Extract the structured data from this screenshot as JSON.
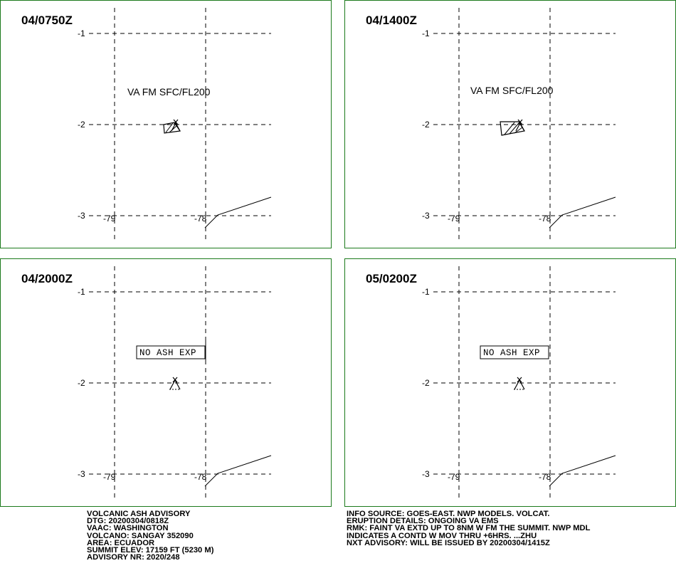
{
  "panels": [
    {
      "time": "04/0750Z",
      "type": "ash",
      "label": "VA FM SFC/FL200",
      "lat_labels": [
        "-1",
        "-2",
        "-3"
      ],
      "lon_labels": [
        "-79",
        "-78"
      ]
    },
    {
      "time": "04/1400Z",
      "type": "ash",
      "label": "VA FM SFC/FL200",
      "lat_labels": [
        "-1",
        "-2",
        "-3"
      ],
      "lon_labels": [
        "-79",
        "-78"
      ]
    },
    {
      "time": "04/2000Z",
      "type": "noash",
      "label": "NO ASH EXP",
      "lat_labels": [
        "-1",
        "-2",
        "-3"
      ],
      "lon_labels": [
        "-79",
        "-78"
      ]
    },
    {
      "time": "05/0200Z",
      "type": "noash",
      "label": "NO ASH EXP",
      "lat_labels": [
        "-1",
        "-2",
        "-3"
      ],
      "lon_labels": [
        "-79",
        "-78"
      ]
    }
  ],
  "advisory_left": [
    "VOLCANIC ASH ADVISORY",
    "DTG: 20200304/0818Z",
    "VAAC: WASHINGTON",
    "VOLCANO: SANGAY 352090",
    "AREA: ECUADOR",
    "SUMMIT ELEV: 17159 FT (5230 M)",
    "ADVISORY NR: 2020/248"
  ],
  "advisory_right": [
    "INFO SOURCE: GOES-EAST. NWP MODELS. VOLCAT.",
    "ERUPTION DETAILS: ONGOING VA EMS",
    "RMK: FAINT VA EXTD UP TO 8NM W FM THE SUMMIT. NWP MDL",
    "INDICATES A CONTD W MOV THRU +6HRS. ...ZHU",
    "NXT ADVISORY: WILL BE ISSUED BY 20200304/1415Z"
  ],
  "colors": {
    "panel_border": "#1c7a1c",
    "ink": "#000000"
  }
}
